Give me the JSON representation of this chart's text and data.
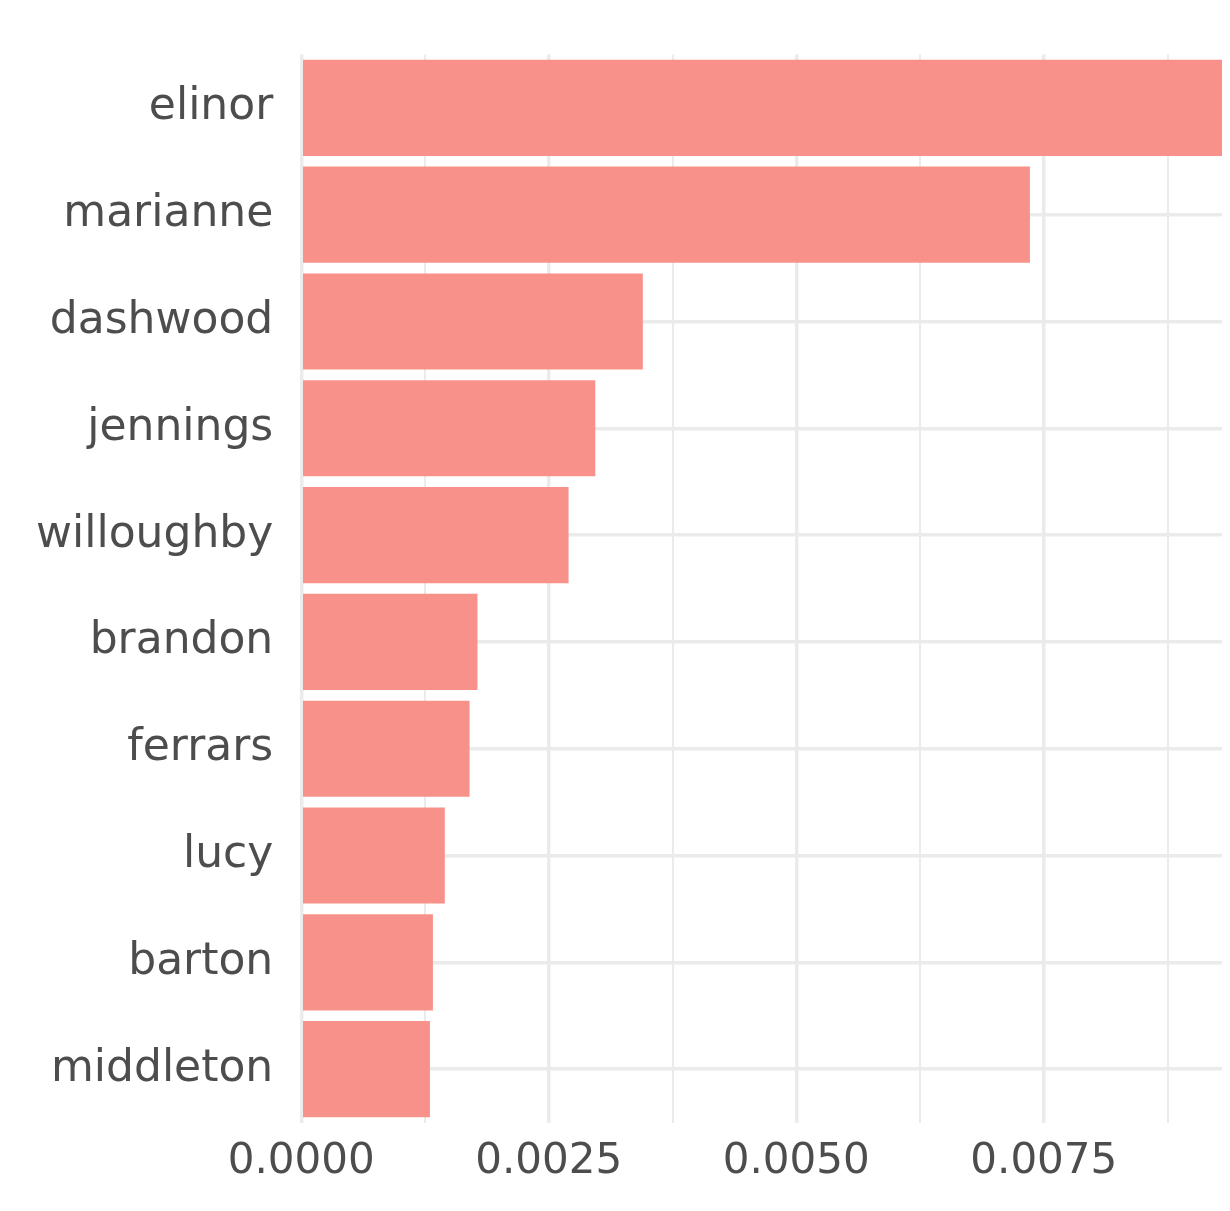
{
  "chart_data": {
    "type": "bar",
    "orientation": "horizontal",
    "categories": [
      "elinor",
      "marianne",
      "dashwood",
      "jennings",
      "willoughby",
      "brandon",
      "ferrars",
      "lucy",
      "barton",
      "middleton"
    ],
    "values": [
      0.0093,
      0.00736,
      0.00345,
      0.00297,
      0.0027,
      0.00178,
      0.0017,
      0.00145,
      0.00133,
      0.0013
    ],
    "color": "#f8918a",
    "xlim": [
      0,
      0.0093
    ],
    "xticks": [
      {
        "value": 0,
        "label": "0.0000"
      },
      {
        "value": 0.00125,
        "label": null
      },
      {
        "value": 0.0025,
        "label": "0.0025"
      },
      {
        "value": 0.00375,
        "label": null
      },
      {
        "value": 0.005,
        "label": "0.0050"
      },
      {
        "value": 0.00625,
        "label": null
      },
      {
        "value": 0.0075,
        "label": "0.0075"
      },
      {
        "value": 0.00875,
        "label": null
      }
    ],
    "grid": true
  }
}
